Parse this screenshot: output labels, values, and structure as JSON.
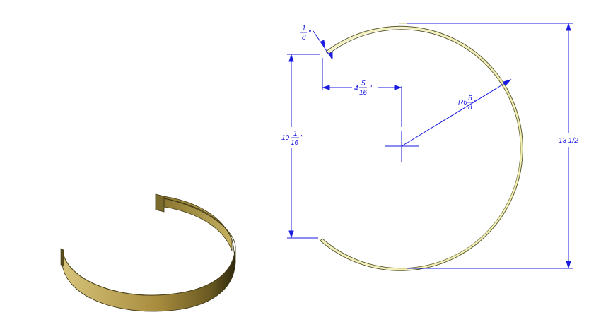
{
  "drawing": {
    "colors": {
      "dimension": "#1a1ae0",
      "part_outline": "#5a5a2a",
      "part_fill": "#f2eeb0",
      "solid_light": "#c8b468",
      "solid_mid": "#a89040",
      "solid_dark": "#3a3212"
    },
    "dims": {
      "thickness": {
        "num": "1",
        "den": "8",
        "unit": "\""
      },
      "offset": {
        "whole": "4",
        "num": "5",
        "den": "16",
        "unit": "\""
      },
      "radius": {
        "prefix": "R6",
        "num": "5",
        "den": "8",
        "unit": "\""
      },
      "height": {
        "whole": "10",
        "num": "1",
        "den": "16",
        "unit": "\""
      },
      "overall": {
        "text": "13 1/2"
      }
    }
  }
}
